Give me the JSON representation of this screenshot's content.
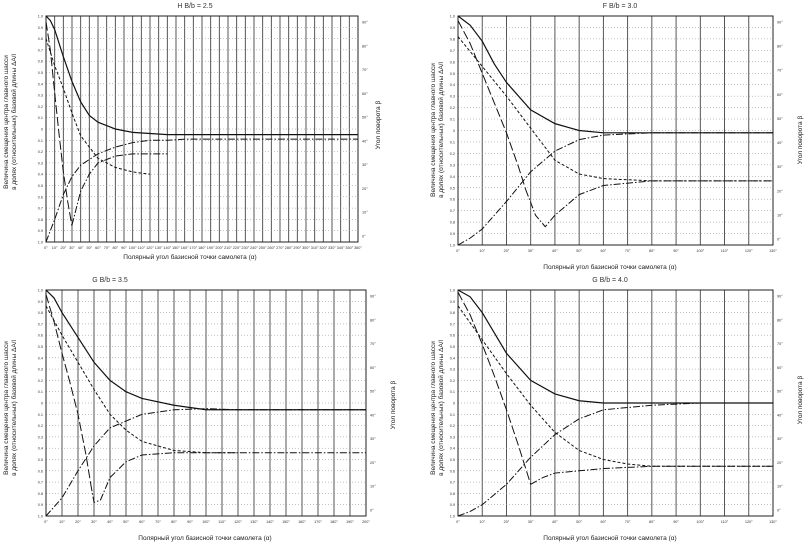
{
  "chart_data": [
    {
      "type": "line",
      "title": "H  B/b = 2.5",
      "xlabel": "Полярный угол базисной точки самолета (α)",
      "ylabel_lines": [
        "Величина смещения центра главного шасси",
        "в долях (относительных) базовой длины ΔA/l"
      ],
      "y2label": "Угол поворота β",
      "xlim": [
        0,
        360
      ],
      "x_ticks": [
        "0°",
        "10°",
        "20°",
        "30°",
        "40°",
        "50°",
        "60°",
        "70°",
        "80°",
        "90°",
        "100°",
        "110°",
        "120°",
        "130°",
        "140°",
        "150°",
        "160°",
        "170°",
        "180°",
        "190°",
        "200°",
        "210°",
        "220°",
        "230°",
        "240°",
        "250°",
        "260°",
        "270°",
        "280°",
        "290°",
        "300°",
        "310°",
        "320°",
        "330°",
        "340°",
        "350°",
        "360°"
      ],
      "y_ticks": [
        "1.0",
        "0.9",
        "0.8",
        "0.7",
        "0.6",
        "0.5",
        "0.4",
        "0.3",
        "0.2",
        "0.1",
        "0",
        "0.1",
        "0.2",
        "0.3",
        "0.4",
        "0.5",
        "0.6",
        "0.7",
        "0.8",
        "0.9",
        "1.0"
      ],
      "y2_ticks": [
        "90°",
        "80°",
        "70°",
        "60°",
        "50°",
        "40°",
        "30°",
        "20°",
        "10°",
        "0°"
      ],
      "series": [
        {
          "style": "solid",
          "x": [
            0,
            5,
            10,
            20,
            30,
            40,
            50,
            60,
            80,
            100,
            120,
            140,
            360
          ],
          "y": [
            1.0,
            0.96,
            0.88,
            0.64,
            0.42,
            0.24,
            0.12,
            0.06,
            0.0,
            -0.03,
            -0.04,
            -0.05,
            -0.05
          ]
        },
        {
          "style": "short-dash",
          "x": [
            0,
            10,
            20,
            30,
            40,
            60,
            80,
            100,
            120
          ],
          "y": [
            0.8,
            0.56,
            0.36,
            0.14,
            -0.06,
            -0.26,
            -0.34,
            -0.38,
            -0.4
          ]
        },
        {
          "style": "long-dash",
          "x": [
            0,
            5,
            10,
            15,
            20,
            25,
            30
          ],
          "y": [
            0.95,
            0.7,
            0.32,
            -0.04,
            -0.38,
            -0.64,
            -0.86
          ]
        },
        {
          "style": "dash-dot",
          "x": [
            30,
            40,
            50,
            60,
            80,
            100,
            120,
            140
          ],
          "y": [
            -0.85,
            -0.55,
            -0.4,
            -0.3,
            -0.24,
            -0.22,
            -0.22,
            -0.22
          ]
        },
        {
          "style": "dash-dot",
          "x": [
            0,
            5,
            10,
            20,
            30,
            40,
            60,
            80,
            100,
            120,
            140,
            160,
            200,
            240,
            280,
            320,
            360
          ],
          "y": [
            -1.0,
            -0.9,
            -0.8,
            -0.58,
            -0.42,
            -0.32,
            -0.22,
            -0.16,
            -0.12,
            -0.1,
            -0.1,
            -0.09,
            -0.09,
            -0.09,
            -0.09,
            -0.09,
            -0.09
          ]
        }
      ]
    },
    {
      "type": "line",
      "title": "F  B/b = 3.0",
      "xlabel": "Полярный угол базисной точки самолета (α)",
      "ylabel_lines": [
        "Величина смещения центра главного шасси",
        "в долях (относительных) базовой длины ΔA/l"
      ],
      "y2label": "Угол поворота β",
      "xlim": [
        0,
        130
      ],
      "x_ticks": [
        "0°",
        "10°",
        "20°",
        "30°",
        "40°",
        "50°",
        "60°",
        "70°",
        "80°",
        "90°",
        "100°",
        "110°",
        "120°",
        "130°"
      ],
      "y_ticks": [
        "1.0",
        "0.9",
        "0.8",
        "0.7",
        "0.6",
        "0.5",
        "0.4",
        "0.3",
        "0.2",
        "0.1",
        "0",
        "0.1",
        "0.2",
        "0.3",
        "0.4",
        "0.5",
        "0.6",
        "0.7",
        "0.8",
        "0.9",
        "1.0"
      ],
      "y2_ticks": [
        "90°",
        "80°",
        "70°",
        "60°",
        "50°",
        "40°",
        "30°",
        "20°",
        "10°",
        "0°"
      ],
      "series": [
        {
          "style": "solid",
          "x": [
            0,
            5,
            10,
            15,
            20,
            30,
            40,
            50,
            60,
            80,
            100,
            130
          ],
          "y": [
            1.0,
            0.92,
            0.78,
            0.58,
            0.42,
            0.18,
            0.06,
            0.0,
            -0.02,
            -0.02,
            -0.02,
            -0.02
          ]
        },
        {
          "style": "short-dash",
          "x": [
            0,
            10,
            20,
            30,
            40,
            50,
            60,
            80,
            100,
            130
          ],
          "y": [
            0.82,
            0.56,
            0.3,
            0.02,
            -0.26,
            -0.38,
            -0.42,
            -0.44,
            -0.44,
            -0.44
          ]
        },
        {
          "style": "long-dash",
          "x": [
            0,
            5,
            10,
            15,
            20,
            25,
            28
          ],
          "y": [
            0.96,
            0.76,
            0.5,
            0.24,
            -0.02,
            -0.32,
            -0.52
          ]
        },
        {
          "style": "dash-dot",
          "x": [
            28,
            32,
            36,
            40,
            50,
            60,
            80,
            100,
            130
          ],
          "y": [
            -0.52,
            -0.74,
            -0.84,
            -0.74,
            -0.56,
            -0.48,
            -0.44,
            -0.44,
            -0.44
          ]
        },
        {
          "style": "dash-dot",
          "x": [
            0,
            5,
            10,
            20,
            30,
            40,
            50,
            60,
            80,
            100,
            130
          ],
          "y": [
            -1.0,
            -0.94,
            -0.86,
            -0.62,
            -0.36,
            -0.18,
            -0.08,
            -0.04,
            -0.02,
            -0.02,
            -0.02
          ]
        }
      ]
    },
    {
      "type": "line",
      "title": "G  B/b = 3.5",
      "xlabel": "Полярный угол базисной точки самолета (α)",
      "ylabel_lines": [
        "Величина смещения центра главного шасси",
        "в долях (относительных) базовой длины ΔA/l"
      ],
      "y2label": "Угол поворота β",
      "xlim": [
        0,
        200
      ],
      "x_ticks": [
        "0°",
        "10°",
        "20°",
        "30°",
        "40°",
        "50°",
        "60°",
        "70°",
        "80°",
        "90°",
        "100°",
        "110°",
        "120°",
        "130°",
        "140°",
        "150°",
        "160°",
        "170°",
        "180°",
        "190°",
        "200°"
      ],
      "y_ticks": [
        "1.0",
        "0.9",
        "0.8",
        "0.7",
        "0.6",
        "0.5",
        "0.4",
        "0.3",
        "0.2",
        "0.1",
        "0",
        "0.1",
        "0.2",
        "0.3",
        "0.4",
        "0.5",
        "0.6",
        "0.7",
        "0.8",
        "0.9",
        "1.0"
      ],
      "y2_ticks": [
        "90°",
        "80°",
        "70°",
        "60°",
        "50°",
        "40°",
        "30°",
        "20°",
        "10°",
        "0°"
      ],
      "series": [
        {
          "style": "solid",
          "x": [
            0,
            5,
            10,
            20,
            30,
            40,
            50,
            60,
            80,
            100,
            120,
            140,
            200
          ],
          "y": [
            1.0,
            0.93,
            0.8,
            0.58,
            0.36,
            0.2,
            0.1,
            0.04,
            -0.02,
            -0.06,
            -0.06,
            -0.06,
            -0.06
          ]
        },
        {
          "style": "short-dash",
          "x": [
            0,
            10,
            20,
            30,
            40,
            50,
            60,
            80,
            100,
            120
          ],
          "y": [
            0.86,
            0.6,
            0.36,
            0.12,
            -0.1,
            -0.24,
            -0.34,
            -0.42,
            -0.44,
            -0.44
          ]
        },
        {
          "style": "long-dash",
          "x": [
            0,
            5,
            10,
            15,
            20,
            25,
            28
          ],
          "y": [
            0.96,
            0.72,
            0.44,
            0.18,
            -0.1,
            -0.46,
            -0.72
          ]
        },
        {
          "style": "dash-dot",
          "x": [
            28,
            30,
            34,
            40,
            50,
            60,
            80,
            100,
            120,
            140,
            200
          ],
          "y": [
            -0.72,
            -0.88,
            -0.86,
            -0.66,
            -0.52,
            -0.46,
            -0.44,
            -0.44,
            -0.44,
            -0.44,
            -0.44
          ]
        },
        {
          "style": "dash-dot",
          "x": [
            0,
            5,
            10,
            20,
            30,
            40,
            60,
            80,
            100,
            120,
            140,
            200
          ],
          "y": [
            -1.0,
            -0.92,
            -0.84,
            -0.6,
            -0.38,
            -0.22,
            -0.1,
            -0.06,
            -0.05,
            -0.06,
            -0.06,
            -0.06
          ]
        }
      ]
    },
    {
      "type": "line",
      "title": "G  B/b = 4.0",
      "xlabel": "Полярный угол базисной точки самолета (α)",
      "ylabel_lines": [
        "Величина смещения центра главного шасси",
        "в долях (относительных) базовой длины ΔA/l"
      ],
      "y2label": "Угол поворота β",
      "xlim": [
        0,
        130
      ],
      "x_ticks": [
        "0°",
        "10°",
        "20°",
        "30°",
        "40°",
        "50°",
        "60°",
        "70°",
        "80°",
        "90°",
        "100°",
        "110°",
        "120°",
        "130°"
      ],
      "y_ticks": [
        "1.0",
        "0.9",
        "0.8",
        "0.7",
        "0.6",
        "0.5",
        "0.4",
        "0.3",
        "0.2",
        "0.1",
        "0",
        "0.1",
        "0.2",
        "0.3",
        "0.4",
        "0.5",
        "0.6",
        "0.7",
        "0.8",
        "0.9",
        "1.0"
      ],
      "y2_ticks": [
        "90°",
        "80°",
        "70°",
        "60°",
        "50°",
        "40°",
        "30°",
        "20°",
        "10°",
        "0°"
      ],
      "series": [
        {
          "style": "solid",
          "x": [
            0,
            5,
            10,
            15,
            20,
            30,
            40,
            50,
            60,
            80,
            100,
            130
          ],
          "y": [
            1.0,
            0.94,
            0.8,
            0.62,
            0.44,
            0.2,
            0.08,
            0.02,
            0.0,
            0.0,
            0.0,
            0.0
          ]
        },
        {
          "style": "short-dash",
          "x": [
            0,
            10,
            20,
            30,
            40,
            50,
            60,
            70,
            80,
            100,
            130
          ],
          "y": [
            0.86,
            0.56,
            0.26,
            -0.02,
            -0.26,
            -0.42,
            -0.5,
            -0.54,
            -0.56,
            -0.56,
            -0.56
          ]
        },
        {
          "style": "long-dash",
          "x": [
            0,
            5,
            10,
            15,
            20,
            25,
            30
          ],
          "y": [
            0.98,
            0.78,
            0.52,
            0.24,
            -0.06,
            -0.38,
            -0.72
          ]
        },
        {
          "style": "dash-dot",
          "x": [
            30,
            35,
            40,
            50,
            60,
            70,
            80,
            100,
            130
          ],
          "y": [
            -0.72,
            -0.66,
            -0.62,
            -0.6,
            -0.58,
            -0.57,
            -0.56,
            -0.56,
            -0.56
          ]
        },
        {
          "style": "dash-dot",
          "x": [
            0,
            5,
            10,
            20,
            30,
            40,
            50,
            60,
            80,
            100,
            130
          ],
          "y": [
            -1.0,
            -0.96,
            -0.9,
            -0.72,
            -0.48,
            -0.28,
            -0.14,
            -0.06,
            -0.02,
            0.0,
            0.0
          ]
        }
      ]
    }
  ]
}
